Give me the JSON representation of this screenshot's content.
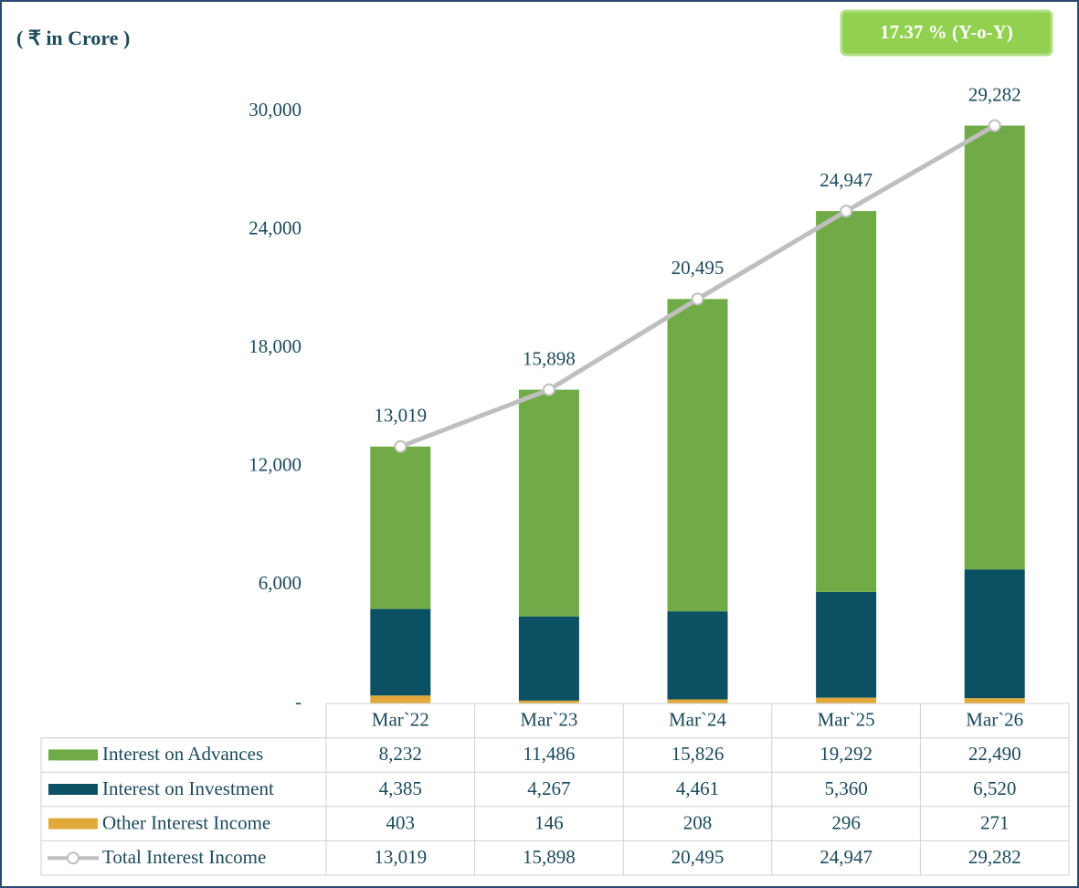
{
  "chart_data": {
    "type": "bar",
    "stacked": true,
    "title": "( ₹ in Crore )",
    "annotation": "17.37 % (Y-o-Y)",
    "categories": [
      "Mar`22",
      "Mar`23",
      "Mar`24",
      "Mar`25",
      "Mar`26"
    ],
    "series": [
      {
        "name": "Interest on Advances",
        "color": "#70ab47",
        "values": [
          8232,
          11486,
          15826,
          19292,
          22490
        ],
        "value_labels": [
          "8,232",
          "11,486",
          "15,826",
          "19,292",
          "22,490"
        ]
      },
      {
        "name": "Interest on Investment",
        "color": "#0b5063",
        "values": [
          4385,
          4267,
          4461,
          5360,
          6520
        ],
        "value_labels": [
          "4,385",
          "4,267",
          "4,461",
          "5,360",
          "6,520"
        ]
      },
      {
        "name": "Other Interest Income",
        "color": "#e0a93a",
        "values": [
          403,
          146,
          208,
          296,
          271
        ]
      },
      {
        "name": "Total Interest Income",
        "color": "#bfbfbf",
        "type": "line",
        "values": [
          13019,
          15898,
          20495,
          24947,
          29282
        ],
        "value_labels": [
          "13,019",
          "15,898",
          "20,495",
          "24,947",
          "29,282"
        ]
      }
    ],
    "ylim": [
      0,
      30000
    ],
    "yticks": [
      {
        "value": 0,
        "label": "-"
      },
      {
        "value": 6000,
        "label": "6,000"
      },
      {
        "value": 12000,
        "label": "12,000"
      },
      {
        "value": 18000,
        "label": "18,000"
      },
      {
        "value": 24000,
        "label": "24,000"
      },
      {
        "value": 30000,
        "label": "30,000"
      }
    ],
    "grid": false
  }
}
